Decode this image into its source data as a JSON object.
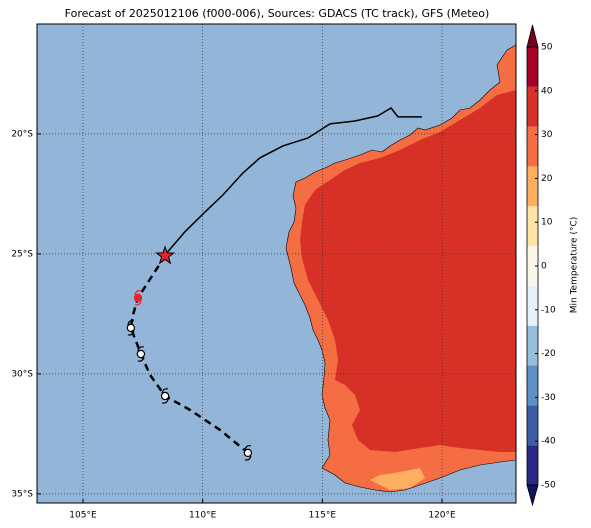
{
  "chart_data": {
    "type": "map",
    "title": "Forecast of 2025012106 (f000-006), Sources: GDACS (TC track), GFS (Meteo)",
    "xlim": [
      103.08,
      123.09
    ],
    "ylim": [
      -35.38,
      -15.42
    ],
    "xticks": [
      {
        "value": 105,
        "label": "105°E"
      },
      {
        "value": 110,
        "label": "110°E"
      },
      {
        "value": 115,
        "label": "115°E"
      },
      {
        "value": 120,
        "label": "120°E"
      }
    ],
    "yticks": [
      {
        "value": -20,
        "label": "20°S"
      },
      {
        "value": -25,
        "label": "25°S"
      },
      {
        "value": -30,
        "label": "30°S"
      },
      {
        "value": -35,
        "label": "35°S"
      }
    ],
    "grid": true,
    "ocean_color": "#92b5d8",
    "track_past": {
      "color": "#000000",
      "lon": [
        119.16,
        118.16,
        117.87,
        117.32,
        116.36,
        115.32,
        114.4,
        113.35,
        112.39,
        111.68,
        110.85,
        110.1,
        109.26,
        108.43
      ],
      "lat": [
        -19.29,
        -19.29,
        -18.92,
        -19.25,
        -19.46,
        -19.58,
        -20.17,
        -20.5,
        -21.0,
        -21.63,
        -22.54,
        -23.25,
        -24.08,
        -25.04
      ]
    },
    "track_forecast": {
      "color": "#000000",
      "lon": [
        108.43,
        107.3,
        107.09,
        107.0,
        107.42,
        107.8,
        108.43,
        109.47,
        110.72,
        111.89
      ],
      "lat": [
        -25.08,
        -26.83,
        -27.54,
        -28.08,
        -29.17,
        -30.04,
        -30.92,
        -31.5,
        -32.33,
        -33.29
      ]
    },
    "current_position": {
      "lon": 108.43,
      "lat": -25.08,
      "color": "#e8262a"
    },
    "forecast_positions": {
      "lon": [
        107.3,
        107.0,
        107.42,
        108.43,
        111.89
      ],
      "lat": [
        -26.83,
        -28.08,
        -29.17,
        -30.92,
        -33.29
      ],
      "colors": [
        "#e8262a",
        "#ffffff",
        "#ffffff",
        "#ffffff",
        "#ffffff"
      ]
    },
    "colorbar": {
      "label": "Min Temperature (°C)",
      "lim": [
        -50,
        50
      ],
      "ticks": [
        -50,
        -40,
        -30,
        -20,
        -10,
        0,
        10,
        20,
        30,
        40,
        50
      ],
      "colors": [
        "#2a2a86",
        "#3d5ca6",
        "#5d90c4",
        "#95bfdc",
        "#e6f2f7",
        "#fbf8ea",
        "#fee4a6",
        "#fdae61",
        "#f46d43",
        "#d73027",
        "#a50026"
      ],
      "extend_colors": [
        "#12125e",
        "#7a0020"
      ]
    }
  }
}
